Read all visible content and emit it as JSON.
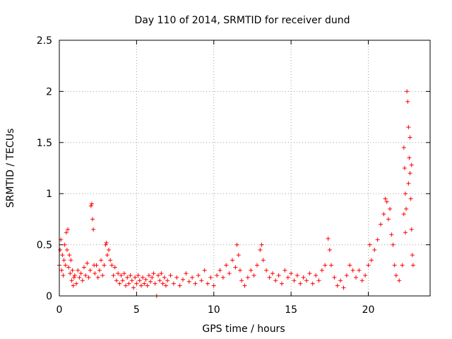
{
  "chart_data": {
    "type": "scatter",
    "title": "Day 110 of 2014, SRMTID for receiver dund",
    "xlabel": "GPS time / hours",
    "ylabel": "SRMTID / TECUs",
    "xlim": [
      0,
      24
    ],
    "ylim": [
      0,
      2.5
    ],
    "xticks": [
      0,
      5,
      10,
      15,
      20
    ],
    "xtick_labels": [
      "0",
      "5",
      "10",
      "15",
      "20"
    ],
    "yticks": [
      0,
      0.5,
      1,
      1.5,
      2,
      2.5
    ],
    "ytick_labels": [
      "0",
      "0.5",
      "1",
      "1.5",
      "2",
      "2.5"
    ],
    "grid": true,
    "marker": "+",
    "color": "#ff0000",
    "series": [
      {
        "name": "SRMTID",
        "points": [
          [
            0.0,
            0.3
          ],
          [
            0.05,
            0.45
          ],
          [
            0.1,
            0.55
          ],
          [
            0.15,
            0.25
          ],
          [
            0.2,
            0.4
          ],
          [
            0.25,
            0.2
          ],
          [
            0.3,
            0.35
          ],
          [
            0.35,
            0.5
          ],
          [
            0.4,
            0.3
          ],
          [
            0.45,
            0.62
          ],
          [
            0.5,
            0.45
          ],
          [
            0.55,
            0.65
          ],
          [
            0.6,
            0.28
          ],
          [
            0.65,
            0.4
          ],
          [
            0.7,
            0.22
          ],
          [
            0.75,
            0.35
          ],
          [
            0.8,
            0.15
          ],
          [
            0.85,
            0.25
          ],
          [
            0.9,
            0.1
          ],
          [
            0.95,
            0.18
          ],
          [
            1.0,
            0.2
          ],
          [
            1.1,
            0.12
          ],
          [
            1.2,
            0.25
          ],
          [
            1.3,
            0.18
          ],
          [
            1.4,
            0.22
          ],
          [
            1.5,
            0.15
          ],
          [
            1.6,
            0.28
          ],
          [
            1.7,
            0.2
          ],
          [
            1.8,
            0.32
          ],
          [
            1.9,
            0.18
          ],
          [
            2.0,
            0.25
          ],
          [
            2.05,
            0.88
          ],
          [
            2.1,
            0.9
          ],
          [
            2.15,
            0.75
          ],
          [
            2.2,
            0.65
          ],
          [
            2.25,
            0.3
          ],
          [
            2.3,
            0.22
          ],
          [
            2.4,
            0.3
          ],
          [
            2.5,
            0.18
          ],
          [
            2.6,
            0.25
          ],
          [
            2.7,
            0.35
          ],
          [
            2.8,
            0.2
          ],
          [
            2.9,
            0.3
          ],
          [
            3.0,
            0.5
          ],
          [
            3.05,
            0.52
          ],
          [
            3.1,
            0.4
          ],
          [
            3.2,
            0.45
          ],
          [
            3.3,
            0.35
          ],
          [
            3.4,
            0.3
          ],
          [
            3.5,
            0.2
          ],
          [
            3.6,
            0.28
          ],
          [
            3.7,
            0.15
          ],
          [
            3.8,
            0.22
          ],
          [
            3.9,
            0.12
          ],
          [
            4.0,
            0.2
          ],
          [
            4.1,
            0.15
          ],
          [
            4.2,
            0.22
          ],
          [
            4.3,
            0.1
          ],
          [
            4.4,
            0.18
          ],
          [
            4.5,
            0.12
          ],
          [
            4.6,
            0.2
          ],
          [
            4.7,
            0.15
          ],
          [
            4.8,
            0.08
          ],
          [
            4.9,
            0.18
          ],
          [
            5.0,
            0.12
          ],
          [
            5.1,
            0.2
          ],
          [
            5.2,
            0.15
          ],
          [
            5.3,
            0.1
          ],
          [
            5.4,
            0.18
          ],
          [
            5.5,
            0.12
          ],
          [
            5.6,
            0.16
          ],
          [
            5.7,
            0.1
          ],
          [
            5.8,
            0.2
          ],
          [
            5.9,
            0.14
          ],
          [
            6.0,
            0.18
          ],
          [
            6.1,
            0.22
          ],
          [
            6.2,
            0.12
          ],
          [
            6.3,
            0.0
          ],
          [
            6.4,
            0.2
          ],
          [
            6.5,
            0.15
          ],
          [
            6.6,
            0.22
          ],
          [
            6.7,
            0.12
          ],
          [
            6.8,
            0.18
          ],
          [
            6.9,
            0.1
          ],
          [
            7.0,
            0.15
          ],
          [
            7.2,
            0.2
          ],
          [
            7.4,
            0.12
          ],
          [
            7.6,
            0.18
          ],
          [
            7.8,
            0.1
          ],
          [
            8.0,
            0.16
          ],
          [
            8.2,
            0.22
          ],
          [
            8.4,
            0.14
          ],
          [
            8.6,
            0.18
          ],
          [
            8.8,
            0.12
          ],
          [
            9.0,
            0.2
          ],
          [
            9.2,
            0.15
          ],
          [
            9.4,
            0.25
          ],
          [
            9.6,
            0.12
          ],
          [
            9.8,
            0.18
          ],
          [
            10.0,
            0.1
          ],
          [
            10.2,
            0.2
          ],
          [
            10.4,
            0.25
          ],
          [
            10.6,
            0.18
          ],
          [
            10.8,
            0.3
          ],
          [
            11.0,
            0.22
          ],
          [
            11.2,
            0.35
          ],
          [
            11.4,
            0.28
          ],
          [
            11.5,
            0.5
          ],
          [
            11.6,
            0.4
          ],
          [
            11.7,
            0.25
          ],
          [
            11.8,
            0.15
          ],
          [
            12.0,
            0.1
          ],
          [
            12.2,
            0.18
          ],
          [
            12.4,
            0.25
          ],
          [
            12.6,
            0.2
          ],
          [
            12.8,
            0.3
          ],
          [
            13.0,
            0.45
          ],
          [
            13.1,
            0.5
          ],
          [
            13.2,
            0.35
          ],
          [
            13.4,
            0.25
          ],
          [
            13.6,
            0.18
          ],
          [
            13.8,
            0.22
          ],
          [
            14.0,
            0.15
          ],
          [
            14.2,
            0.2
          ],
          [
            14.4,
            0.12
          ],
          [
            14.6,
            0.25
          ],
          [
            14.8,
            0.18
          ],
          [
            15.0,
            0.22
          ],
          [
            15.2,
            0.15
          ],
          [
            15.4,
            0.2
          ],
          [
            15.6,
            0.12
          ],
          [
            15.8,
            0.18
          ],
          [
            16.0,
            0.15
          ],
          [
            16.2,
            0.22
          ],
          [
            16.4,
            0.12
          ],
          [
            16.6,
            0.2
          ],
          [
            16.8,
            0.15
          ],
          [
            17.0,
            0.25
          ],
          [
            17.2,
            0.3
          ],
          [
            17.4,
            0.56
          ],
          [
            17.5,
            0.45
          ],
          [
            17.6,
            0.3
          ],
          [
            17.8,
            0.18
          ],
          [
            18.0,
            0.1
          ],
          [
            18.2,
            0.15
          ],
          [
            18.4,
            0.08
          ],
          [
            18.6,
            0.2
          ],
          [
            18.8,
            0.3
          ],
          [
            19.0,
            0.25
          ],
          [
            19.2,
            0.18
          ],
          [
            19.4,
            0.25
          ],
          [
            19.6,
            0.15
          ],
          [
            19.8,
            0.2
          ],
          [
            20.0,
            0.3
          ],
          [
            20.1,
            0.5
          ],
          [
            20.2,
            0.35
          ],
          [
            20.4,
            0.45
          ],
          [
            20.6,
            0.55
          ],
          [
            20.8,
            0.7
          ],
          [
            21.0,
            0.8
          ],
          [
            21.1,
            0.95
          ],
          [
            21.2,
            0.92
          ],
          [
            21.3,
            0.75
          ],
          [
            21.4,
            0.85
          ],
          [
            21.5,
            0.6
          ],
          [
            21.6,
            0.5
          ],
          [
            21.7,
            0.3
          ],
          [
            21.8,
            0.2
          ],
          [
            22.0,
            0.15
          ],
          [
            22.2,
            0.3
          ],
          [
            22.3,
            1.45
          ],
          [
            22.35,
            1.25
          ],
          [
            22.4,
            1.0
          ],
          [
            22.45,
            0.85
          ],
          [
            22.5,
            2.0
          ],
          [
            22.55,
            1.9
          ],
          [
            22.6,
            1.65
          ],
          [
            22.65,
            1.35
          ],
          [
            22.7,
            1.2
          ],
          [
            22.75,
            0.95
          ],
          [
            22.8,
            0.65
          ],
          [
            22.85,
            0.4
          ],
          [
            22.9,
            0.3
          ],
          [
            22.6,
            1.1
          ],
          [
            22.4,
            0.62
          ],
          [
            22.7,
            1.55
          ],
          [
            22.3,
            0.8
          ],
          [
            22.8,
            1.28
          ]
        ]
      }
    ]
  }
}
